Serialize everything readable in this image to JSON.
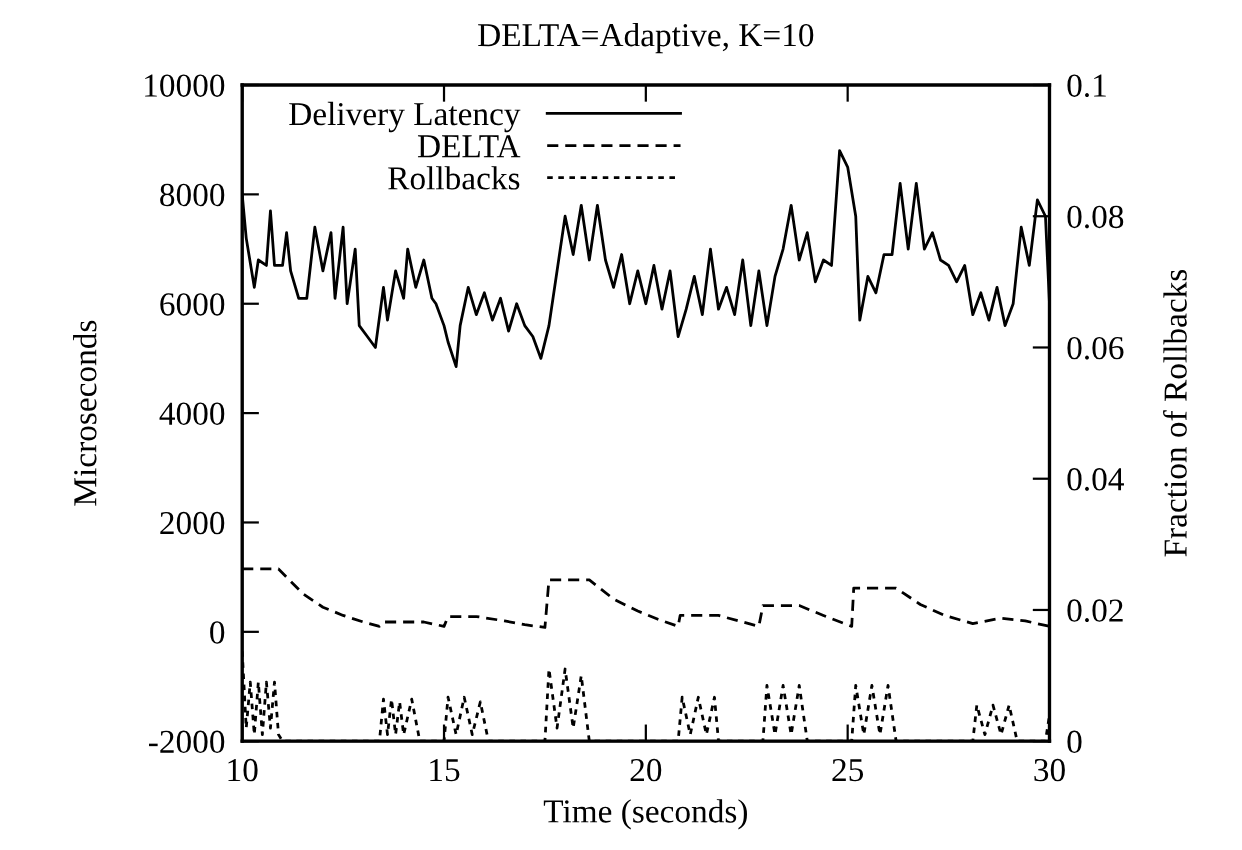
{
  "chart_data": {
    "type": "line",
    "title": "DELTA=Adaptive, K=10",
    "xlabel": "Time (seconds)",
    "ylabel": "Microseconds",
    "y2label": "Fraction of Rollbacks",
    "xlim": [
      10,
      30
    ],
    "xticks": [
      10,
      15,
      20,
      25,
      30
    ],
    "ylim": [
      -2000,
      10000
    ],
    "yticks": [
      -2000,
      0,
      2000,
      4000,
      6000,
      8000,
      10000
    ],
    "y2lim": [
      0,
      0.1
    ],
    "y2ticks": [
      0,
      0.02,
      0.04,
      0.06,
      0.08,
      0.1
    ],
    "legend": "top",
    "grid": false,
    "marker": "none",
    "series": [
      {
        "name": "Delivery Latency",
        "color": "#000000",
        "line_style": "solid",
        "x": [
          10.0,
          10.1,
          10.3,
          10.4,
          10.6,
          10.7,
          10.8,
          11.0,
          11.1,
          11.2,
          11.4,
          11.6,
          11.8,
          12.0,
          12.2,
          12.3,
          12.5,
          12.6,
          12.8,
          12.9,
          13.1,
          13.3,
          13.5,
          13.6,
          13.8,
          14.0,
          14.1,
          14.3,
          14.5,
          14.7,
          14.8,
          15.0,
          15.1,
          15.3,
          15.4,
          15.6,
          15.8,
          16.0,
          16.2,
          16.4,
          16.6,
          16.8,
          17.0,
          17.2,
          17.4,
          17.6,
          17.8,
          18.0,
          18.2,
          18.4,
          18.6,
          18.8,
          19.0,
          19.2,
          19.4,
          19.6,
          19.8,
          20.0,
          20.2,
          20.4,
          20.6,
          20.8,
          21.0,
          21.2,
          21.4,
          21.6,
          21.8,
          22.0,
          22.2,
          22.4,
          22.6,
          22.8,
          23.0,
          23.2,
          23.4,
          23.6,
          23.8,
          24.0,
          24.2,
          24.4,
          24.6,
          24.8,
          25.0,
          25.2,
          25.3,
          25.5,
          25.7,
          25.9,
          26.1,
          26.3,
          26.5,
          26.7,
          26.9,
          27.1,
          27.3,
          27.5,
          27.7,
          27.9,
          28.1,
          28.3,
          28.5,
          28.7,
          28.9,
          29.1,
          29.3,
          29.5,
          29.7,
          29.9,
          30.0
        ],
        "values": [
          8000,
          7200,
          6300,
          6800,
          6700,
          7700,
          6700,
          6700,
          7300,
          6600,
          6100,
          6100,
          7400,
          6600,
          7300,
          6100,
          7400,
          6000,
          7000,
          5600,
          5400,
          5200,
          6300,
          5700,
          6600,
          6100,
          7000,
          6300,
          6800,
          6100,
          6000,
          5600,
          5300,
          4850,
          5600,
          6300,
          5800,
          6200,
          5700,
          6100,
          5500,
          6000,
          5600,
          5400,
          5000,
          5600,
          6600,
          7600,
          6900,
          7800,
          6800,
          7800,
          6800,
          6300,
          6900,
          6000,
          6600,
          6000,
          6700,
          5900,
          6600,
          5400,
          5900,
          6500,
          5800,
          7000,
          5900,
          6300,
          5800,
          6800,
          5600,
          6600,
          5600,
          6500,
          7000,
          7800,
          6800,
          7300,
          6400,
          6800,
          6700,
          8800,
          8500,
          7600,
          5700,
          6500,
          6200,
          6900,
          6900,
          8200,
          7000,
          8200,
          7000,
          7300,
          6800,
          6700,
          6400,
          6700,
          5800,
          6200,
          5700,
          6300,
          5600,
          6000,
          7400,
          6700,
          7900,
          7600,
          6000
        ]
      },
      {
        "name": "DELTA",
        "color": "#000000",
        "line_style": "dashed",
        "x": [
          10.0,
          10.9,
          11.5,
          12.0,
          12.5,
          13.0,
          13.4,
          13.5,
          14.5,
          15.0,
          15.1,
          15.8,
          16.5,
          17.0,
          17.5,
          17.6,
          18.6,
          19.2,
          19.8,
          20.3,
          20.8,
          20.85,
          21.8,
          22.3,
          22.8,
          22.9,
          23.8,
          24.4,
          25.1,
          25.15,
          26.2,
          26.8,
          27.4,
          28.1,
          28.8,
          29.4,
          30.0
        ],
        "values": [
          1150,
          1150,
          700,
          450,
          300,
          180,
          100,
          180,
          180,
          100,
          280,
          280,
          200,
          130,
          80,
          950,
          950,
          600,
          380,
          230,
          100,
          300,
          300,
          200,
          100,
          480,
          480,
          300,
          100,
          800,
          800,
          500,
          300,
          150,
          250,
          200,
          100
        ]
      },
      {
        "name": "Rollbacks",
        "color": "#000000",
        "line_style": "dotted",
        "axis": "y2",
        "x": [
          10.0,
          10.1,
          10.2,
          10.3,
          10.4,
          10.5,
          10.6,
          10.7,
          10.8,
          10.9,
          11.0,
          13.4,
          13.5,
          13.6,
          13.7,
          13.8,
          13.9,
          14.0,
          14.2,
          14.4,
          15.0,
          15.1,
          15.3,
          15.5,
          15.7,
          15.9,
          16.1,
          17.5,
          17.6,
          17.8,
          18.0,
          18.2,
          18.4,
          18.6,
          20.8,
          20.9,
          21.1,
          21.3,
          21.5,
          21.7,
          21.8,
          22.9,
          23.0,
          23.2,
          23.4,
          23.6,
          23.8,
          24.0,
          25.1,
          25.2,
          25.4,
          25.6,
          25.8,
          26.0,
          26.2,
          28.1,
          28.2,
          28.4,
          28.6,
          28.8,
          29.0,
          29.2,
          29.9,
          30.0
        ],
        "values": [
          0.0137,
          0.002,
          0.009,
          0.001,
          0.009,
          0.001,
          0.009,
          0.002,
          0.009,
          0.001,
          0,
          0,
          0.0064,
          0.001,
          0.0064,
          0.001,
          0.006,
          0.001,
          0.0064,
          0,
          0,
          0.0067,
          0.001,
          0.0067,
          0.001,
          0.006,
          0,
          0,
          0.011,
          0.002,
          0.011,
          0.002,
          0.01,
          0,
          0,
          0.0067,
          0.001,
          0.0067,
          0.001,
          0.0067,
          0,
          0,
          0.0085,
          0.001,
          0.0085,
          0.001,
          0.0085,
          0,
          0,
          0.0085,
          0.001,
          0.0085,
          0.001,
          0.0085,
          0,
          0,
          0.0055,
          0.001,
          0.0055,
          0.001,
          0.0055,
          0,
          0,
          0.004
        ]
      }
    ]
  }
}
